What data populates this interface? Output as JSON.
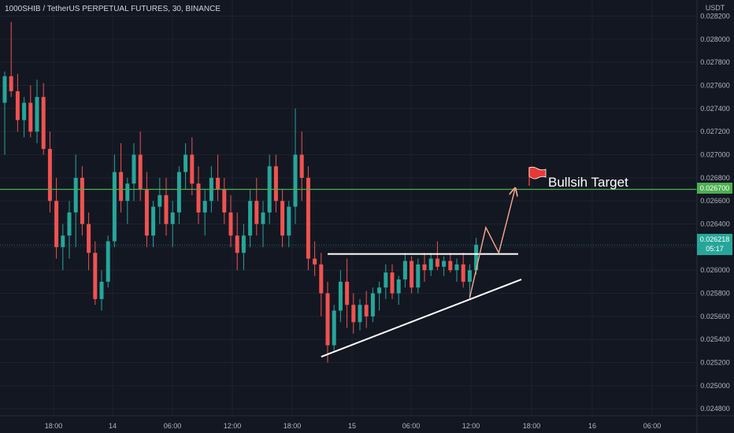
{
  "header": {
    "title": "1000SHIB / TetherUS PERPETUAL FUTURES, 30, BINANCE",
    "currency": "USDT"
  },
  "colors": {
    "background": "#131722",
    "up": "#26a69a",
    "down": "#ef5350",
    "level_line": "#4caf50",
    "trendline": "#ffffff",
    "projection": "#f7a98b",
    "flag": "#e53935"
  },
  "price_tags": {
    "level": "0.026700",
    "last_price": "0.026218",
    "countdown": "05:17"
  },
  "annotation": {
    "text": "Bullsih Target",
    "icon": "flag-icon"
  },
  "chart_data": {
    "type": "candlestick",
    "symbol": "1000SHIB / TetherUS PERPETUAL FUTURES",
    "interval": "30",
    "exchange": "BINANCE",
    "y_axis": {
      "ticks": [
        "0.028200",
        "0.028000",
        "0.027800",
        "0.027600",
        "0.027400",
        "0.027200",
        "0.027000",
        "0.026800",
        "0.026600",
        "0.026400",
        "0.026200",
        "0.026000",
        "0.025800",
        "0.025600",
        "0.025400",
        "0.025200",
        "0.025000",
        "0.024800"
      ],
      "range": [
        0.02474,
        0.02834
      ]
    },
    "x_axis": {
      "ticks": [
        "18:00",
        "14",
        "06:00",
        "12:00",
        "18:00",
        "15",
        "06:00",
        "12:00",
        "18:00",
        "16",
        "06:00"
      ]
    },
    "horizontal_level": 0.0267,
    "last_price": 0.026218,
    "candles": [
      [
        0.02745,
        0.02772,
        0.027,
        0.02768
      ],
      [
        0.02768,
        0.02815,
        0.0275,
        0.02755
      ],
      [
        0.02755,
        0.0277,
        0.0272,
        0.0273
      ],
      [
        0.0273,
        0.0275,
        0.02715,
        0.02745
      ],
      [
        0.02745,
        0.0276,
        0.02715,
        0.0272
      ],
      [
        0.0272,
        0.02765,
        0.0271,
        0.0275
      ],
      [
        0.0275,
        0.02762,
        0.027,
        0.02705
      ],
      [
        0.02705,
        0.0272,
        0.0265,
        0.0266
      ],
      [
        0.0266,
        0.0268,
        0.0261,
        0.0262
      ],
      [
        0.0262,
        0.0264,
        0.026,
        0.0263
      ],
      [
        0.0263,
        0.0266,
        0.0261,
        0.0265
      ],
      [
        0.0265,
        0.027,
        0.0262,
        0.0268
      ],
      [
        0.0268,
        0.0269,
        0.0263,
        0.0264
      ],
      [
        0.0264,
        0.0265,
        0.026,
        0.02615
      ],
      [
        0.02615,
        0.02625,
        0.0257,
        0.02575
      ],
      [
        0.02575,
        0.026,
        0.02565,
        0.0259
      ],
      [
        0.0259,
        0.0263,
        0.02585,
        0.02625
      ],
      [
        0.02625,
        0.027,
        0.0262,
        0.02685
      ],
      [
        0.02685,
        0.0271,
        0.0265,
        0.0266
      ],
      [
        0.0266,
        0.0268,
        0.0264,
        0.02675
      ],
      [
        0.02675,
        0.0271,
        0.0266,
        0.027
      ],
      [
        0.027,
        0.0272,
        0.0266,
        0.0267
      ],
      [
        0.0267,
        0.02685,
        0.0262,
        0.0263
      ],
      [
        0.0263,
        0.0266,
        0.0262,
        0.02655
      ],
      [
        0.02655,
        0.0268,
        0.0264,
        0.02665
      ],
      [
        0.02665,
        0.0268,
        0.0263,
        0.0264
      ],
      [
        0.0264,
        0.0266,
        0.0262,
        0.0265
      ],
      [
        0.0265,
        0.0269,
        0.0264,
        0.02685
      ],
      [
        0.02685,
        0.0271,
        0.0267,
        0.027
      ],
      [
        0.027,
        0.02715,
        0.02665,
        0.02675
      ],
      [
        0.02675,
        0.0269,
        0.0264,
        0.0265
      ],
      [
        0.0265,
        0.0267,
        0.0263,
        0.0266
      ],
      [
        0.0266,
        0.0269,
        0.0265,
        0.0268
      ],
      [
        0.0268,
        0.027,
        0.0266,
        0.0267
      ],
      [
        0.0267,
        0.0268,
        0.0264,
        0.0265
      ],
      [
        0.0265,
        0.02665,
        0.0262,
        0.0263
      ],
      [
        0.0263,
        0.0265,
        0.026,
        0.02615
      ],
      [
        0.02615,
        0.0264,
        0.026,
        0.0263
      ],
      [
        0.0263,
        0.0267,
        0.0262,
        0.0266
      ],
      [
        0.0266,
        0.0268,
        0.0263,
        0.0264
      ],
      [
        0.0264,
        0.0266,
        0.0262,
        0.0265
      ],
      [
        0.0265,
        0.027,
        0.0264,
        0.0269
      ],
      [
        0.0269,
        0.027,
        0.0265,
        0.0266
      ],
      [
        0.0266,
        0.0267,
        0.0262,
        0.0263
      ],
      [
        0.0263,
        0.0266,
        0.0262,
        0.02655
      ],
      [
        0.02655,
        0.0274,
        0.0264,
        0.027
      ],
      [
        0.027,
        0.0272,
        0.0266,
        0.0268
      ],
      [
        0.0268,
        0.0269,
        0.026,
        0.0261
      ],
      [
        0.0261,
        0.02625,
        0.02595,
        0.02605
      ],
      [
        0.02605,
        0.02615,
        0.0256,
        0.0258
      ],
      [
        0.0258,
        0.0259,
        0.0252,
        0.02535
      ],
      [
        0.02535,
        0.0257,
        0.0253,
        0.02565
      ],
      [
        0.02565,
        0.026,
        0.02555,
        0.0259
      ],
      [
        0.0259,
        0.0261,
        0.0255,
        0.0257
      ],
      [
        0.0257,
        0.0258,
        0.02545,
        0.02555
      ],
      [
        0.02555,
        0.02575,
        0.02548,
        0.0257
      ],
      [
        0.0257,
        0.02582,
        0.0255,
        0.0256
      ],
      [
        0.0256,
        0.02585,
        0.02555,
        0.0258
      ],
      [
        0.0258,
        0.0259,
        0.02565,
        0.02585
      ],
      [
        0.02585,
        0.02605,
        0.02575,
        0.02598
      ],
      [
        0.02598,
        0.02605,
        0.02575,
        0.0258
      ],
      [
        0.0258,
        0.02595,
        0.0257,
        0.02592
      ],
      [
        0.02592,
        0.02615,
        0.02585,
        0.02608
      ],
      [
        0.02608,
        0.02612,
        0.0258,
        0.02585
      ],
      [
        0.02585,
        0.0261,
        0.0258,
        0.02605
      ],
      [
        0.02605,
        0.02615,
        0.0259,
        0.026
      ],
      [
        0.026,
        0.02615,
        0.02595,
        0.0261
      ],
      [
        0.0261,
        0.02625,
        0.026,
        0.02603
      ],
      [
        0.02603,
        0.02612,
        0.02595,
        0.02608
      ],
      [
        0.02608,
        0.02615,
        0.02598,
        0.026
      ],
      [
        0.026,
        0.0261,
        0.0259,
        0.02605
      ],
      [
        0.02605,
        0.02615,
        0.02585,
        0.0259
      ],
      [
        0.0259,
        0.02605,
        0.02575,
        0.026
      ],
      [
        0.026,
        0.02628,
        0.02596,
        0.02622
      ]
    ],
    "trendlines": [
      {
        "name": "resistance",
        "points": [
          [
            50,
            0.02614
          ],
          [
            79.5,
            0.02614
          ]
        ]
      },
      {
        "name": "support",
        "points": [
          [
            49,
            0.02525
          ],
          [
            80,
            0.02592
          ]
        ]
      }
    ],
    "projection_path": [
      [
        72,
        0.02576
      ],
      [
        74.5,
        0.02637
      ],
      [
        76.5,
        0.02615
      ],
      [
        79,
        0.0267
      ]
    ]
  }
}
